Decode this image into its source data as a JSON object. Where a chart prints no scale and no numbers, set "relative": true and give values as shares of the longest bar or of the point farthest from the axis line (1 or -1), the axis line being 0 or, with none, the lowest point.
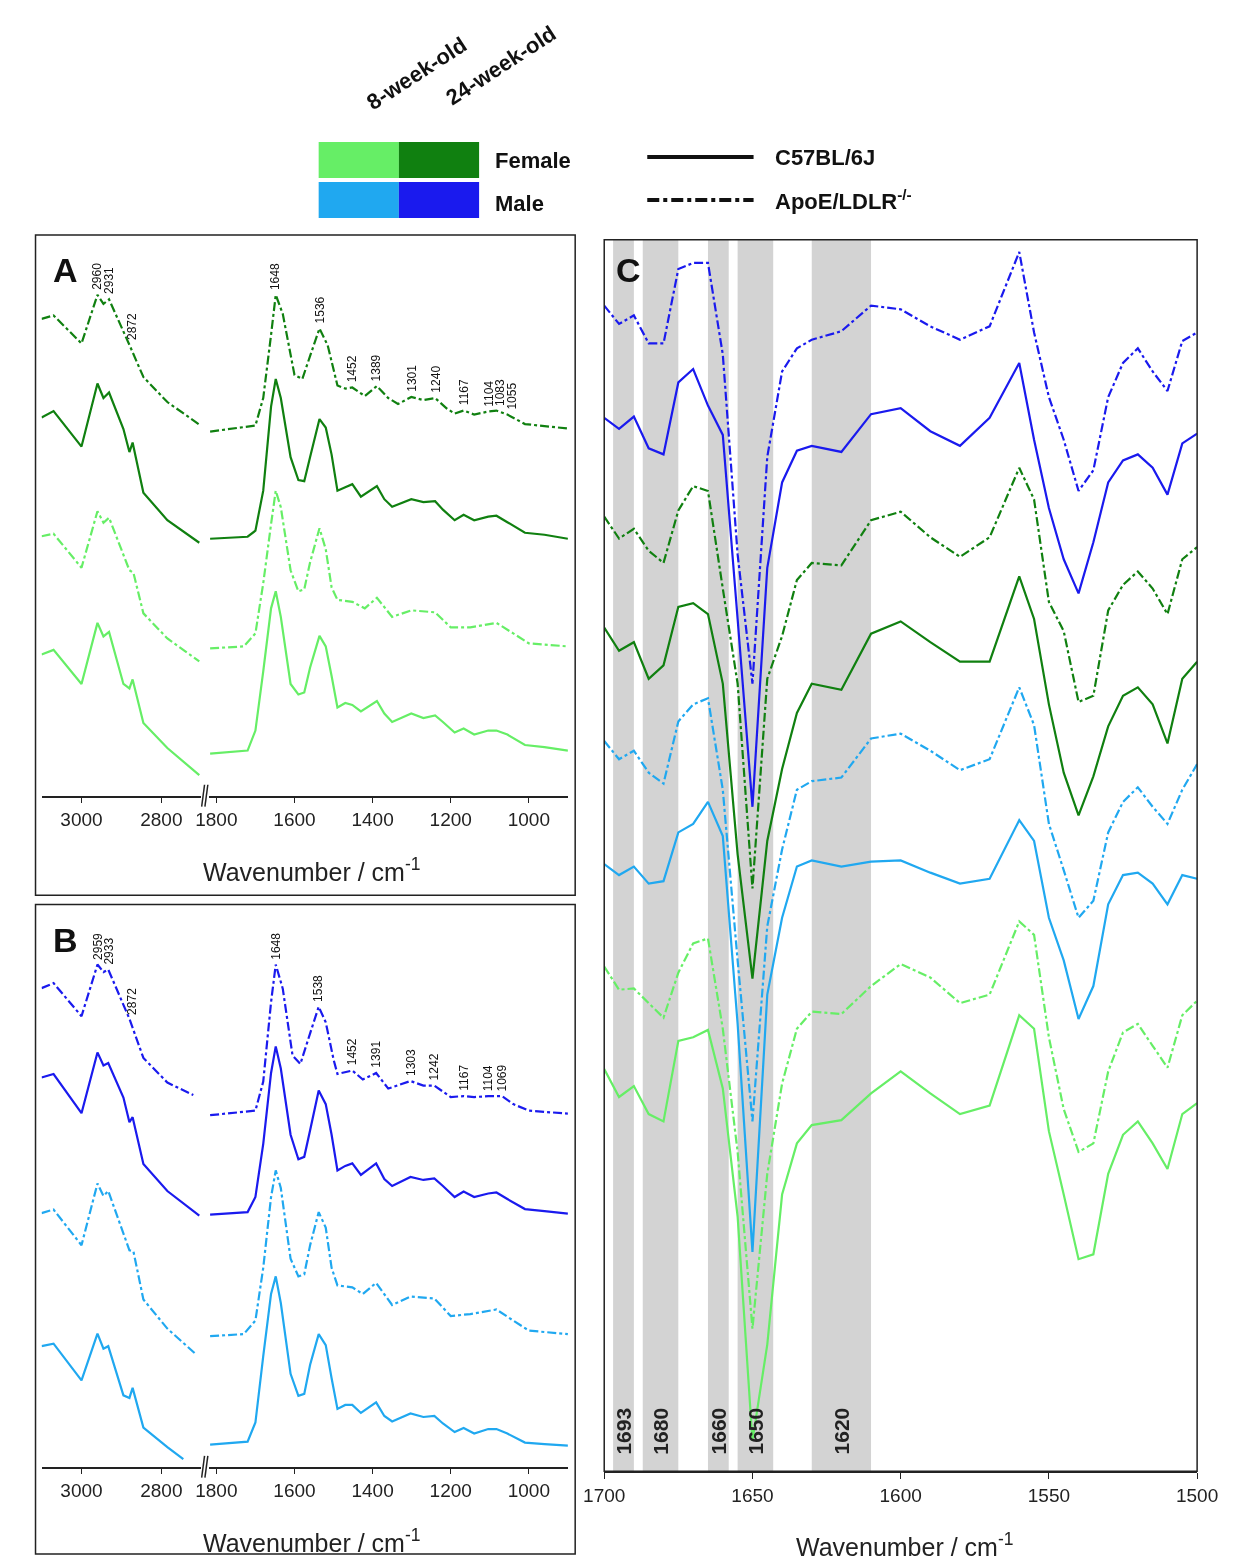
{
  "chart_data": [
    {
      "type": "other",
      "annotations": [
        "8-week-old",
        "24-week-old",
        "Female",
        "Male",
        "C57BL/6J",
        "ApoE/LDLR$^{-/-}$"
      ],
      "colors": [
        "#66ee66",
        "#108010",
        "#20a8f0",
        "#1a1aee"
      ]
    },
    {
      "type": "line",
      "title": "A",
      "relative": true,
      "tick_labels": "x",
      "xlim": [
        3100,
        2700
      ],
      "xticks": [
        3000,
        2800
      ],
      "annotations": [
        {
          "text": "2960",
          "x": 2960,
          "y": 1.0
        },
        {
          "text": "2931",
          "x": 2931,
          "y": 0.991
        },
        {
          "text": "2872",
          "x": 2872,
          "y": 0.9
        }
      ],
      "series": [
        {
          "color": "#108010",
          "line_style": "dashdot",
          "x": [
            3100,
            3070,
            3000,
            2960,
            2945,
            2931,
            2880,
            2845,
            2785,
            2705
          ],
          "values": [
            0.952,
            0.959,
            0.903,
            1.0,
            0.982,
            0.991,
            0.9,
            0.836,
            0.786,
            0.741
          ]
        },
        {
          "color": "#108010",
          "line_style": "solid",
          "x": [
            3100,
            3070,
            3000,
            2960,
            2945,
            2931,
            2895,
            2880,
            2872,
            2845,
            2785,
            2705
          ],
          "values": [
            0.755,
            0.768,
            0.697,
            0.823,
            0.794,
            0.805,
            0.732,
            0.686,
            0.705,
            0.605,
            0.55,
            0.505
          ]
        },
        {
          "color": "#66ee66",
          "line_style": "dashdot",
          "x": [
            3100,
            3070,
            3000,
            2960,
            2945,
            2931,
            2880,
            2870,
            2845,
            2785,
            2705
          ],
          "values": [
            0.518,
            0.523,
            0.455,
            0.568,
            0.545,
            0.555,
            0.45,
            0.445,
            0.364,
            0.314,
            0.268
          ]
        },
        {
          "color": "#66ee66",
          "line_style": "solid",
          "x": [
            3100,
            3070,
            3000,
            2960,
            2945,
            2931,
            2895,
            2880,
            2872,
            2845,
            2785,
            2705
          ],
          "values": [
            0.282,
            0.291,
            0.223,
            0.345,
            0.318,
            0.327,
            0.223,
            0.214,
            0.232,
            0.145,
            0.095,
            0.041
          ]
        }
      ]
    },
    {
      "type": "line",
      "xlabel": "Wavenumber / cm$^{-1}$",
      "relative": true,
      "tick_labels": "x",
      "xlim": [
        1820,
        900
      ],
      "xticks": [
        1800,
        1600,
        1400,
        1200,
        1000
      ],
      "annotations": [
        {
          "text": "1648",
          "x": 1648,
          "y": 1.0
        },
        {
          "text": "1536",
          "x": 1536,
          "y": 0.933
        },
        {
          "text": "1452",
          "x": 1452,
          "y": 0.815
        },
        {
          "text": "1389",
          "x": 1389,
          "y": 0.818
        },
        {
          "text": "1301",
          "x": 1301,
          "y": 0.796
        },
        {
          "text": "1240",
          "x": 1240,
          "y": 0.794
        },
        {
          "text": "1167",
          "x": 1167,
          "y": 0.769
        },
        {
          "text": "1104",
          "x": 1104,
          "y": 0.767
        },
        {
          "text": "1083",
          "x": 1083,
          "y": 0.769
        },
        {
          "text": "1055",
          "x": 1055,
          "y": 0.761
        }
      ],
      "series": [
        {
          "color": "#108010",
          "line_style": "dashdot",
          "x": [
            1816,
            1700,
            1680,
            1660,
            1648,
            1630,
            1600,
            1580,
            1560,
            1536,
            1515,
            1490,
            1470,
            1452,
            1420,
            1389,
            1360,
            1335,
            1301,
            1270,
            1240,
            1210,
            1190,
            1167,
            1140,
            1104,
            1083,
            1055,
            1010,
            960,
            900
          ],
          "values": [
            0.727,
            0.739,
            0.794,
            0.92,
            1.0,
            0.962,
            0.84,
            0.832,
            0.878,
            0.933,
            0.899,
            0.819,
            0.813,
            0.815,
            0.798,
            0.818,
            0.794,
            0.782,
            0.796,
            0.79,
            0.794,
            0.773,
            0.763,
            0.769,
            0.761,
            0.767,
            0.769,
            0.761,
            0.742,
            0.738,
            0.733
          ]
        },
        {
          "color": "#108010",
          "line_style": "solid",
          "x": [
            1816,
            1720,
            1700,
            1680,
            1660,
            1648,
            1635,
            1610,
            1590,
            1575,
            1560,
            1536,
            1520,
            1505,
            1490,
            1470,
            1452,
            1430,
            1389,
            1370,
            1350,
            1301,
            1270,
            1240,
            1220,
            1190,
            1167,
            1140,
            1104,
            1083,
            1055,
            1010,
            960,
            900
          ],
          "values": [
            0.513,
            0.517,
            0.529,
            0.609,
            0.777,
            0.832,
            0.794,
            0.676,
            0.63,
            0.628,
            0.676,
            0.752,
            0.735,
            0.681,
            0.609,
            0.616,
            0.622,
            0.597,
            0.618,
            0.592,
            0.577,
            0.592,
            0.586,
            0.588,
            0.571,
            0.55,
            0.561,
            0.55,
            0.557,
            0.559,
            0.546,
            0.525,
            0.521,
            0.513
          ]
        },
        {
          "color": "#66ee66",
          "line_style": "dashdot",
          "x": [
            1816,
            1730,
            1700,
            1680,
            1660,
            1648,
            1635,
            1610,
            1590,
            1575,
            1560,
            1536,
            1520,
            1505,
            1490,
            1452,
            1420,
            1389,
            1350,
            1301,
            1240,
            1200,
            1150,
            1083,
            1040,
            1000,
            900
          ],
          "values": [
            0.294,
            0.298,
            0.324,
            0.424,
            0.542,
            0.609,
            0.576,
            0.45,
            0.408,
            0.412,
            0.466,
            0.534,
            0.492,
            0.416,
            0.391,
            0.387,
            0.374,
            0.395,
            0.357,
            0.37,
            0.366,
            0.336,
            0.336,
            0.345,
            0.324,
            0.304,
            0.298
          ]
        },
        {
          "color": "#66ee66",
          "line_style": "solid",
          "x": [
            1816,
            1720,
            1700,
            1680,
            1660,
            1648,
            1635,
            1610,
            1590,
            1575,
            1560,
            1536,
            1520,
            1505,
            1490,
            1470,
            1452,
            1430,
            1389,
            1370,
            1350,
            1301,
            1270,
            1240,
            1220,
            1190,
            1167,
            1140,
            1104,
            1083,
            1055,
            1010,
            960,
            900
          ],
          "values": [
            0.084,
            0.09,
            0.13,
            0.248,
            0.374,
            0.408,
            0.357,
            0.223,
            0.202,
            0.206,
            0.256,
            0.319,
            0.298,
            0.239,
            0.176,
            0.185,
            0.181,
            0.168,
            0.189,
            0.164,
            0.147,
            0.164,
            0.155,
            0.16,
            0.147,
            0.126,
            0.134,
            0.122,
            0.13,
            0.13,
            0.122,
            0.101,
            0.097,
            0.09
          ]
        }
      ]
    },
    {
      "type": "line",
      "title": "C",
      "xlabel": "Wavenumber / cm$^{-1}$",
      "relative": true,
      "tick_labels": "x",
      "xlim": [
        1700,
        1500
      ],
      "xticks": [
        1700,
        1650,
        1600,
        1550,
        1500
      ],
      "x": [
        1700,
        1695,
        1690,
        1685,
        1680,
        1675,
        1670,
        1665,
        1660,
        1655,
        1650,
        1645,
        1640,
        1635,
        1630,
        1620,
        1610,
        1600,
        1590,
        1580,
        1570,
        1560,
        1555,
        1550,
        1545,
        1540,
        1535,
        1530,
        1525,
        1520,
        1515,
        1510,
        1505,
        1500
      ],
      "bands": [
        {
          "axis": "x",
          "from": 1697,
          "to": 1690,
          "label": "1693",
          "color": "#d3d3d3"
        },
        {
          "axis": "x",
          "from": 1687,
          "to": 1675,
          "label": "1680",
          "color": "#d3d3d3"
        },
        {
          "axis": "x",
          "from": 1665,
          "to": 1658,
          "label": "1660",
          "color": "#d3d3d3"
        },
        {
          "axis": "x",
          "from": 1655,
          "to": 1643,
          "label": "1650",
          "color": "#d3d3d3"
        },
        {
          "axis": "x",
          "from": 1630,
          "to": 1610,
          "label": "1620",
          "color": "#d3d3d3"
        }
      ],
      "series": [
        {
          "color": "#1a1aee",
          "line_style": "dashdot",
          "values": [
            0.956,
            0.941,
            0.948,
            0.925,
            0.925,
            0.986,
            0.991,
            0.991,
            0.916,
            0.752,
            0.646,
            0.832,
            0.902,
            0.921,
            0.928,
            0.935,
            0.956,
            0.953,
            0.939,
            0.928,
            0.939,
            1.0,
            0.934,
            0.881,
            0.846,
            0.804,
            0.821,
            0.881,
            0.909,
            0.921,
            0.902,
            0.886,
            0.927,
            0.934
          ]
        },
        {
          "color": "#1a1aee",
          "line_style": "solid",
          "values": [
            0.864,
            0.855,
            0.865,
            0.839,
            0.834,
            0.893,
            0.904,
            0.874,
            0.85,
            0.699,
            0.545,
            0.741,
            0.811,
            0.837,
            0.841,
            0.836,
            0.867,
            0.872,
            0.853,
            0.841,
            0.864,
            0.909,
            0.846,
            0.79,
            0.748,
            0.72,
            0.762,
            0.811,
            0.829,
            0.834,
            0.823,
            0.801,
            0.843,
            0.851
          ]
        },
        {
          "color": "#108010",
          "line_style": "dashdot",
          "values": [
            0.783,
            0.765,
            0.773,
            0.755,
            0.745,
            0.788,
            0.808,
            0.804,
            0.724,
            0.646,
            0.478,
            0.65,
            0.685,
            0.731,
            0.745,
            0.743,
            0.78,
            0.787,
            0.766,
            0.75,
            0.766,
            0.823,
            0.797,
            0.713,
            0.689,
            0.631,
            0.636,
            0.706,
            0.727,
            0.738,
            0.724,
            0.703,
            0.748,
            0.758
          ]
        },
        {
          "color": "#108010",
          "line_style": "solid",
          "values": [
            0.692,
            0.673,
            0.68,
            0.65,
            0.661,
            0.709,
            0.712,
            0.703,
            0.646,
            0.506,
            0.404,
            0.517,
            0.576,
            0.622,
            0.646,
            0.641,
            0.687,
            0.697,
            0.68,
            0.664,
            0.664,
            0.734,
            0.699,
            0.629,
            0.573,
            0.538,
            0.57,
            0.611,
            0.636,
            0.643,
            0.629,
            0.597,
            0.65,
            0.664
          ]
        },
        {
          "color": "#20a8f0",
          "line_style": "dashdot",
          "values": [
            0.599,
            0.584,
            0.591,
            0.573,
            0.564,
            0.615,
            0.629,
            0.634,
            0.559,
            0.419,
            0.287,
            0.447,
            0.51,
            0.559,
            0.566,
            0.569,
            0.601,
            0.605,
            0.591,
            0.575,
            0.584,
            0.643,
            0.612,
            0.531,
            0.493,
            0.454,
            0.468,
            0.524,
            0.549,
            0.561,
            0.545,
            0.531,
            0.559,
            0.58
          ]
        },
        {
          "color": "#20a8f0",
          "line_style": "solid",
          "values": [
            0.498,
            0.489,
            0.496,
            0.482,
            0.484,
            0.524,
            0.531,
            0.549,
            0.521,
            0.367,
            0.18,
            0.391,
            0.454,
            0.496,
            0.501,
            0.496,
            0.5,
            0.501,
            0.491,
            0.482,
            0.486,
            0.534,
            0.517,
            0.454,
            0.419,
            0.371,
            0.398,
            0.465,
            0.489,
            0.491,
            0.482,
            0.465,
            0.489,
            0.486
          ]
        },
        {
          "color": "#66ee66",
          "line_style": "dashdot",
          "values": [
            0.414,
            0.395,
            0.396,
            0.384,
            0.372,
            0.409,
            0.433,
            0.437,
            0.363,
            0.262,
            0.117,
            0.244,
            0.318,
            0.363,
            0.377,
            0.375,
            0.398,
            0.416,
            0.405,
            0.384,
            0.391,
            0.451,
            0.44,
            0.356,
            0.297,
            0.262,
            0.269,
            0.328,
            0.36,
            0.367,
            0.349,
            0.331,
            0.374,
            0.386
          ]
        },
        {
          "color": "#66ee66",
          "line_style": "solid",
          "values": [
            0.33,
            0.307,
            0.316,
            0.293,
            0.287,
            0.353,
            0.356,
            0.362,
            0.314,
            0.209,
            0.025,
            0.104,
            0.227,
            0.269,
            0.284,
            0.288,
            0.31,
            0.328,
            0.31,
            0.293,
            0.3,
            0.374,
            0.363,
            0.279,
            0.227,
            0.174,
            0.178,
            0.244,
            0.276,
            0.287,
            0.269,
            0.248,
            0.293,
            0.302
          ]
        }
      ]
    },
    {
      "type": "line",
      "title": "B",
      "relative": true,
      "tick_labels": "x",
      "xlim": [
        3100,
        2700
      ],
      "xticks": [
        3000,
        2800
      ],
      "annotations": [
        {
          "text": "2959",
          "x": 2959,
          "y": 1.0
        },
        {
          "text": "2933",
          "x": 2933,
          "y": 0.99
        },
        {
          "text": "2872",
          "x": 2872,
          "y": 0.89
        }
      ],
      "series": [
        {
          "color": "#1a1aee",
          "line_style": "dashdot",
          "x": [
            3100,
            3070,
            3000,
            2960,
            2945,
            2933,
            2880,
            2845,
            2785,
            2720
          ],
          "values": [
            0.953,
            0.963,
            0.897,
            1.0,
            0.985,
            0.99,
            0.892,
            0.814,
            0.765,
            0.74
          ]
        },
        {
          "color": "#1a1aee",
          "line_style": "solid",
          "x": [
            3100,
            3070,
            3000,
            2960,
            2945,
            2933,
            2895,
            2880,
            2872,
            2845,
            2785,
            2705
          ],
          "values": [
            0.775,
            0.782,
            0.704,
            0.825,
            0.799,
            0.804,
            0.735,
            0.686,
            0.696,
            0.603,
            0.549,
            0.5
          ]
        },
        {
          "color": "#20a8f0",
          "line_style": "dashdot",
          "x": [
            3100,
            3070,
            3000,
            2960,
            2945,
            2933,
            2880,
            2870,
            2845,
            2785,
            2715
          ],
          "values": [
            0.505,
            0.512,
            0.441,
            0.564,
            0.539,
            0.549,
            0.431,
            0.429,
            0.333,
            0.275,
            0.225
          ]
        },
        {
          "color": "#20a8f0",
          "line_style": "solid",
          "x": [
            3100,
            3070,
            3000,
            2960,
            2945,
            2933,
            2895,
            2880,
            2872,
            2845,
            2785,
            2745
          ],
          "values": [
            0.24,
            0.245,
            0.172,
            0.265,
            0.235,
            0.24,
            0.142,
            0.137,
            0.157,
            0.078,
            0.039,
            0.015
          ]
        }
      ]
    },
    {
      "type": "line",
      "xlabel": "Wavenumber / cm$^{-1}$",
      "relative": true,
      "tick_labels": "x",
      "xlim": [
        1820,
        900
      ],
      "xticks": [
        1800,
        1600,
        1400,
        1200,
        1000
      ],
      "annotations": [
        {
          "text": "1648",
          "x": 1648,
          "y": 1.0
        },
        {
          "text": "1538",
          "x": 1538,
          "y": 0.916
        },
        {
          "text": "1452",
          "x": 1452,
          "y": 0.789
        },
        {
          "text": "1391",
          "x": 1391,
          "y": 0.784
        },
        {
          "text": "1303",
          "x": 1303,
          "y": 0.768
        },
        {
          "text": "1242",
          "x": 1242,
          "y": 0.759
        },
        {
          "text": "1167",
          "x": 1167,
          "y": 0.738
        },
        {
          "text": "1104",
          "x": 1104,
          "y": 0.738
        },
        {
          "text": "1069",
          "x": 1069,
          "y": 0.738
        }
      ],
      "series": [
        {
          "color": "#1a1aee",
          "line_style": "dashdot",
          "x": [
            1816,
            1700,
            1680,
            1660,
            1648,
            1630,
            1605,
            1585,
            1560,
            1538,
            1520,
            1500,
            1490,
            1452,
            1425,
            1391,
            1360,
            1303,
            1270,
            1242,
            1200,
            1167,
            1140,
            1104,
            1069,
            1040,
            1000,
            900
          ],
          "values": [
            0.7,
            0.709,
            0.767,
            0.925,
            1.0,
            0.952,
            0.819,
            0.802,
            0.863,
            0.916,
            0.885,
            0.811,
            0.782,
            0.789,
            0.771,
            0.784,
            0.753,
            0.768,
            0.759,
            0.759,
            0.736,
            0.738,
            0.736,
            0.738,
            0.738,
            0.722,
            0.709,
            0.703
          ]
        },
        {
          "color": "#1a1aee",
          "line_style": "solid",
          "x": [
            1816,
            1720,
            1700,
            1680,
            1660,
            1648,
            1635,
            1610,
            1590,
            1575,
            1560,
            1538,
            1520,
            1505,
            1490,
            1470,
            1452,
            1430,
            1391,
            1370,
            1350,
            1303,
            1270,
            1242,
            1220,
            1190,
            1167,
            1140,
            1104,
            1083,
            1055,
            1010,
            960,
            900
          ],
          "values": [
            0.502,
            0.507,
            0.537,
            0.643,
            0.784,
            0.837,
            0.793,
            0.661,
            0.612,
            0.617,
            0.67,
            0.749,
            0.722,
            0.661,
            0.59,
            0.599,
            0.604,
            0.581,
            0.604,
            0.573,
            0.559,
            0.577,
            0.571,
            0.574,
            0.559,
            0.537,
            0.548,
            0.537,
            0.544,
            0.546,
            0.533,
            0.513,
            0.509,
            0.504
          ]
        },
        {
          "color": "#20a8f0",
          "line_style": "dashdot",
          "x": [
            1816,
            1730,
            1700,
            1680,
            1660,
            1648,
            1635,
            1610,
            1590,
            1575,
            1560,
            1538,
            1520,
            1505,
            1490,
            1452,
            1425,
            1391,
            1350,
            1303,
            1242,
            1200,
            1150,
            1083,
            1040,
            1000,
            900
          ],
          "values": [
            0.26,
            0.264,
            0.291,
            0.396,
            0.537,
            0.59,
            0.555,
            0.414,
            0.379,
            0.383,
            0.441,
            0.507,
            0.476,
            0.396,
            0.361,
            0.357,
            0.344,
            0.366,
            0.322,
            0.339,
            0.335,
            0.3,
            0.304,
            0.313,
            0.291,
            0.271,
            0.264
          ]
        },
        {
          "color": "#20a8f0",
          "line_style": "solid",
          "x": [
            1816,
            1720,
            1700,
            1680,
            1660,
            1648,
            1635,
            1610,
            1590,
            1575,
            1560,
            1538,
            1520,
            1505,
            1490,
            1470,
            1452,
            1430,
            1391,
            1370,
            1350,
            1303,
            1270,
            1242,
            1220,
            1190,
            1167,
            1140,
            1104,
            1083,
            1055,
            1010,
            960,
            900
          ],
          "values": [
            0.044,
            0.05,
            0.088,
            0.22,
            0.344,
            0.379,
            0.326,
            0.185,
            0.141,
            0.145,
            0.203,
            0.264,
            0.242,
            0.176,
            0.115,
            0.123,
            0.123,
            0.107,
            0.128,
            0.101,
            0.09,
            0.106,
            0.099,
            0.101,
            0.086,
            0.069,
            0.077,
            0.066,
            0.075,
            0.075,
            0.066,
            0.048,
            0.045,
            0.042
          ]
        }
      ]
    }
  ]
}
